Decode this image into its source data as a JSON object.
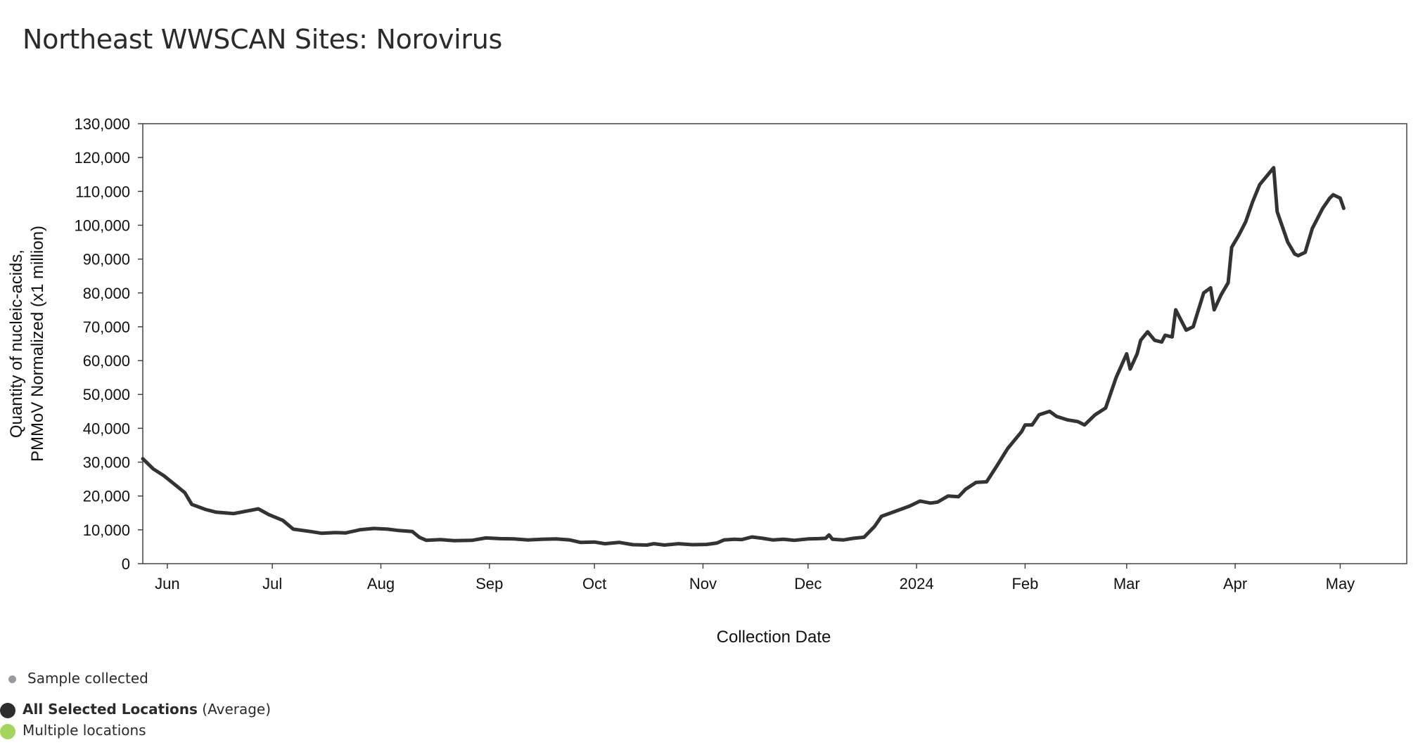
{
  "title": "Northeast WWSCAN Sites: Norovirus",
  "colors": {
    "line": "#333333",
    "sample_dot": "#9a9aa3",
    "avg_dot": "#2e2e2e",
    "multi_dot": "#a4d65e",
    "frame": "#444444"
  },
  "legend": {
    "sample": "Sample collected",
    "avg_bold": "All Selected Locations",
    "avg_rest": "(Average)",
    "multi": "Multiple locations"
  },
  "chart_data": {
    "type": "line",
    "title": "Northeast WWSCAN Sites: Norovirus",
    "xlabel": "Collection Date",
    "ylabel_lines": [
      "Quantity of nucleic-acids,",
      "PMMoV Normalized (x1 million)"
    ],
    "ylim": [
      0,
      130000
    ],
    "yticks": [
      0,
      10000,
      20000,
      30000,
      40000,
      50000,
      60000,
      70000,
      80000,
      90000,
      100000,
      110000,
      120000,
      130000
    ],
    "ytick_labels": [
      "0",
      "10,000",
      "20,000",
      "30,000",
      "40,000",
      "50,000",
      "60,000",
      "70,000",
      "80,000",
      "90,000",
      "100,000",
      "110,000",
      "120,000",
      "130,000"
    ],
    "xlim": [
      "2023-05-25",
      "2024-05-20"
    ],
    "xticks": [
      "2023-06-01",
      "2023-07-01",
      "2023-08-01",
      "2023-09-01",
      "2023-10-01",
      "2023-11-01",
      "2023-12-01",
      "2024-01-01",
      "2024-02-01",
      "2024-03-01",
      "2024-04-01",
      "2024-05-01"
    ],
    "xtick_labels": [
      "Jun",
      "Jul",
      "Aug",
      "Sep",
      "Oct",
      "Nov",
      "Dec",
      "2024",
      "Feb",
      "Mar",
      "Apr",
      "May"
    ],
    "grid": false,
    "series": [
      {
        "name": "All Selected Locations",
        "points": [
          [
            "2023-05-25",
            31000
          ],
          [
            "2023-05-28",
            28000
          ],
          [
            "2023-05-31",
            26000
          ],
          [
            "2023-06-03",
            23500
          ],
          [
            "2023-06-06",
            21000
          ],
          [
            "2023-06-08",
            17500
          ],
          [
            "2023-06-12",
            16000
          ],
          [
            "2023-06-15",
            15200
          ],
          [
            "2023-06-20",
            14800
          ],
          [
            "2023-06-23",
            15400
          ],
          [
            "2023-06-27",
            16200
          ],
          [
            "2023-06-30",
            14500
          ],
          [
            "2023-07-04",
            12800
          ],
          [
            "2023-07-07",
            10200
          ],
          [
            "2023-07-12",
            9500
          ],
          [
            "2023-07-15",
            9000
          ],
          [
            "2023-07-19",
            9200
          ],
          [
            "2023-07-22",
            9100
          ],
          [
            "2023-07-26",
            10000
          ],
          [
            "2023-07-30",
            10400
          ],
          [
            "2023-08-03",
            10200
          ],
          [
            "2023-08-06",
            9800
          ],
          [
            "2023-08-10",
            9500
          ],
          [
            "2023-08-12",
            7800
          ],
          [
            "2023-08-14",
            6900
          ],
          [
            "2023-08-18",
            7100
          ],
          [
            "2023-08-22",
            6800
          ],
          [
            "2023-08-27",
            6900
          ],
          [
            "2023-08-31",
            7600
          ],
          [
            "2023-09-04",
            7400
          ],
          [
            "2023-09-08",
            7300
          ],
          [
            "2023-09-12",
            7000
          ],
          [
            "2023-09-16",
            7200
          ],
          [
            "2023-09-20",
            7300
          ],
          [
            "2023-09-24",
            7000
          ],
          [
            "2023-09-27",
            6300
          ],
          [
            "2023-10-01",
            6400
          ],
          [
            "2023-10-04",
            5900
          ],
          [
            "2023-10-08",
            6300
          ],
          [
            "2023-10-12",
            5600
          ],
          [
            "2023-10-16",
            5500
          ],
          [
            "2023-10-18",
            5900
          ],
          [
            "2023-10-21",
            5500
          ],
          [
            "2023-10-25",
            5900
          ],
          [
            "2023-10-29",
            5600
          ],
          [
            "2023-11-02",
            5700
          ],
          [
            "2023-11-05",
            6100
          ],
          [
            "2023-11-07",
            7000
          ],
          [
            "2023-11-10",
            7200
          ],
          [
            "2023-11-12",
            7100
          ],
          [
            "2023-11-15",
            7900
          ],
          [
            "2023-11-18",
            7500
          ],
          [
            "2023-11-21",
            7000
          ],
          [
            "2023-11-24",
            7200
          ],
          [
            "2023-11-27",
            6900
          ],
          [
            "2023-12-01",
            7300
          ],
          [
            "2023-12-04",
            7400
          ],
          [
            "2023-12-06",
            7500
          ],
          [
            "2023-12-07",
            8500
          ],
          [
            "2023-12-08",
            7200
          ],
          [
            "2023-12-11",
            7000
          ],
          [
            "2023-12-14",
            7500
          ],
          [
            "2023-12-17",
            7800
          ],
          [
            "2023-12-20",
            11000
          ],
          [
            "2023-12-22",
            14000
          ],
          [
            "2023-12-26",
            15500
          ],
          [
            "2023-12-30",
            17000
          ],
          [
            "2024-01-02",
            18500
          ],
          [
            "2024-01-05",
            17900
          ],
          [
            "2024-01-07",
            18200
          ],
          [
            "2024-01-10",
            20000
          ],
          [
            "2024-01-13",
            19800
          ],
          [
            "2024-01-15",
            22000
          ],
          [
            "2024-01-18",
            24000
          ],
          [
            "2024-01-21",
            24200
          ],
          [
            "2024-01-24",
            29000
          ],
          [
            "2024-01-27",
            34000
          ],
          [
            "2024-01-31",
            39000
          ],
          [
            "2024-02-01",
            41000
          ],
          [
            "2024-02-03",
            41000
          ],
          [
            "2024-02-05",
            44000
          ],
          [
            "2024-02-08",
            45000
          ],
          [
            "2024-02-10",
            43500
          ],
          [
            "2024-02-13",
            42500
          ],
          [
            "2024-02-16",
            42000
          ],
          [
            "2024-02-18",
            41000
          ],
          [
            "2024-02-21",
            44000
          ],
          [
            "2024-02-24",
            46000
          ],
          [
            "2024-02-27",
            55000
          ],
          [
            "2024-03-01",
            62000
          ],
          [
            "2024-03-02",
            57500
          ],
          [
            "2024-03-04",
            62000
          ],
          [
            "2024-03-05",
            66000
          ],
          [
            "2024-03-07",
            68500
          ],
          [
            "2024-03-09",
            66000
          ],
          [
            "2024-03-11",
            65500
          ],
          [
            "2024-03-12",
            67500
          ],
          [
            "2024-03-14",
            67000
          ],
          [
            "2024-03-15",
            75000
          ],
          [
            "2024-03-18",
            69000
          ],
          [
            "2024-03-20",
            70000
          ],
          [
            "2024-03-23",
            80000
          ],
          [
            "2024-03-25",
            81500
          ],
          [
            "2024-03-26",
            75000
          ],
          [
            "2024-03-28",
            79500
          ],
          [
            "2024-03-30",
            83000
          ],
          [
            "2024-03-31",
            93500
          ],
          [
            "2024-04-02",
            97000
          ],
          [
            "2024-04-04",
            101000
          ],
          [
            "2024-04-06",
            107000
          ],
          [
            "2024-04-08",
            112000
          ],
          [
            "2024-04-10",
            114500
          ],
          [
            "2024-04-12",
            117000
          ],
          [
            "2024-04-13",
            104000
          ],
          [
            "2024-04-16",
            95000
          ],
          [
            "2024-04-18",
            91500
          ],
          [
            "2024-04-19",
            91000
          ],
          [
            "2024-04-21",
            92000
          ],
          [
            "2024-04-23",
            99000
          ],
          [
            "2024-04-26",
            105000
          ],
          [
            "2024-04-28",
            108000
          ],
          [
            "2024-04-29",
            109000
          ],
          [
            "2024-04-30",
            108500
          ],
          [
            "2024-05-01",
            108000
          ],
          [
            "2024-05-02",
            105000
          ]
        ]
      }
    ]
  }
}
